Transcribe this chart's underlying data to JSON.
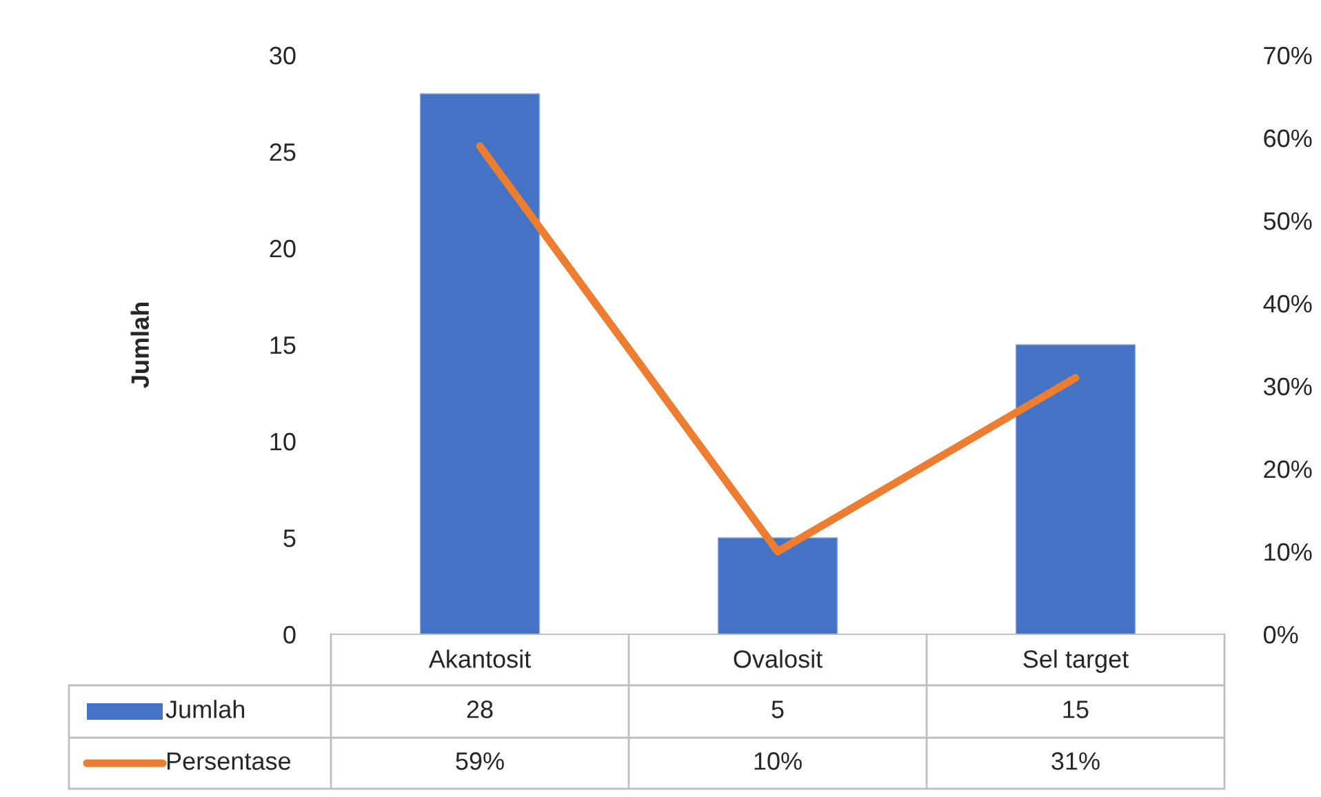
{
  "chart_data": {
    "type": "bar",
    "ylabel": "Jumlah",
    "categories": [
      "Akantosit",
      "Ovalosit",
      "Sel target"
    ],
    "series": [
      {
        "name": "Jumlah",
        "color": "#4472c4",
        "values": [
          28,
          5,
          15
        ],
        "value_labels": [
          "28",
          "5",
          "15"
        ]
      },
      {
        "name": "Persentase",
        "type": "line",
        "axis": "y2",
        "color": "#ed7d31",
        "values": [
          59,
          10,
          31
        ],
        "value_labels": [
          "59%",
          "10%",
          "31%"
        ]
      }
    ],
    "ylim": [
      0,
      30
    ],
    "yticks": [
      0,
      5,
      10,
      15,
      20,
      25,
      30
    ],
    "y2lim": [
      0,
      70
    ],
    "y2ticks": [
      {
        "value": 0,
        "label": "0%"
      },
      {
        "value": 10,
        "label": "10%"
      },
      {
        "value": 20,
        "label": "20%"
      },
      {
        "value": 30,
        "label": "30%"
      },
      {
        "value": 40,
        "label": "40%"
      },
      {
        "value": 50,
        "label": "50%"
      },
      {
        "value": 60,
        "label": "60%"
      },
      {
        "value": 70,
        "label": "70%"
      }
    ],
    "grid": false,
    "legend": "bottom",
    "marker": "none",
    "line_style": "solid"
  }
}
